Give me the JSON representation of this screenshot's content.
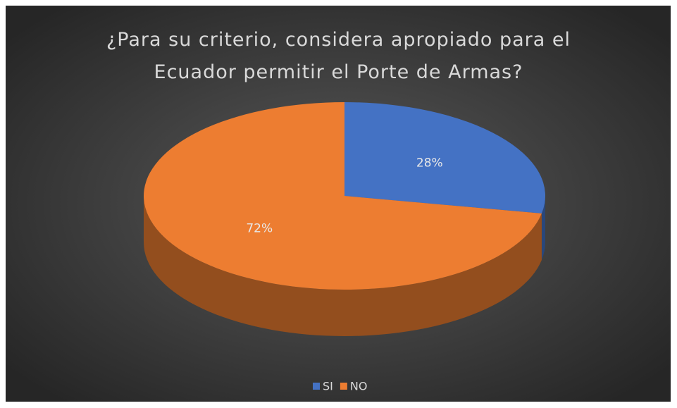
{
  "chart_data": {
    "type": "pie3d",
    "title": "¿Para su criterio, considera apropiado para el Ecuador permitir el Porte de Armas?",
    "categories": [
      "SI",
      "NO"
    ],
    "values": [
      28,
      72
    ],
    "value_labels": [
      "28%",
      "72%"
    ],
    "colors": [
      "#4472c4",
      "#ed7d31"
    ],
    "legend": "bottom"
  }
}
